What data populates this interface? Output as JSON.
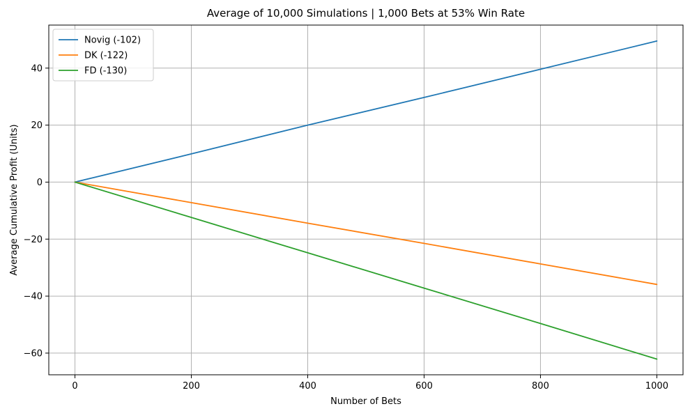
{
  "chart_data": {
    "type": "line",
    "title": "Average of 10,000 Simulations | 1,000 Bets at 53% Win Rate",
    "xlabel": "Number of Bets",
    "ylabel": "Average Cumulative Profit (Units)",
    "xlim": [
      -45,
      1045
    ],
    "ylim": [
      -67.6,
      55.1
    ],
    "xticks": [
      0,
      200,
      400,
      600,
      800,
      1000
    ],
    "yticks": [
      -60,
      -40,
      -20,
      0,
      20,
      40
    ],
    "xtick_labels": [
      "0",
      "200",
      "400",
      "600",
      "800",
      "1000"
    ],
    "ytick_labels": [
      "−60",
      "−40",
      "−20",
      "0",
      "20",
      "40"
    ],
    "grid": true,
    "legend_position": "top-left",
    "series": [
      {
        "name": "Novig (-102)",
        "color": "#1f77b4",
        "x": [
          0,
          200,
          400,
          600,
          800,
          1000
        ],
        "y": [
          0,
          9.9,
          20.0,
          29.7,
          39.6,
          49.5
        ]
      },
      {
        "name": "DK (-122)",
        "color": "#ff7f0e",
        "x": [
          0,
          200,
          400,
          600,
          800,
          1000
        ],
        "y": [
          0,
          -7.2,
          -14.4,
          -21.5,
          -28.7,
          -35.9
        ]
      },
      {
        "name": "FD (-130)",
        "color": "#2ca02c",
        "x": [
          0,
          200,
          400,
          600,
          800,
          1000
        ],
        "y": [
          0,
          -12.4,
          -24.8,
          -37.2,
          -49.6,
          -62.1
        ]
      }
    ]
  }
}
